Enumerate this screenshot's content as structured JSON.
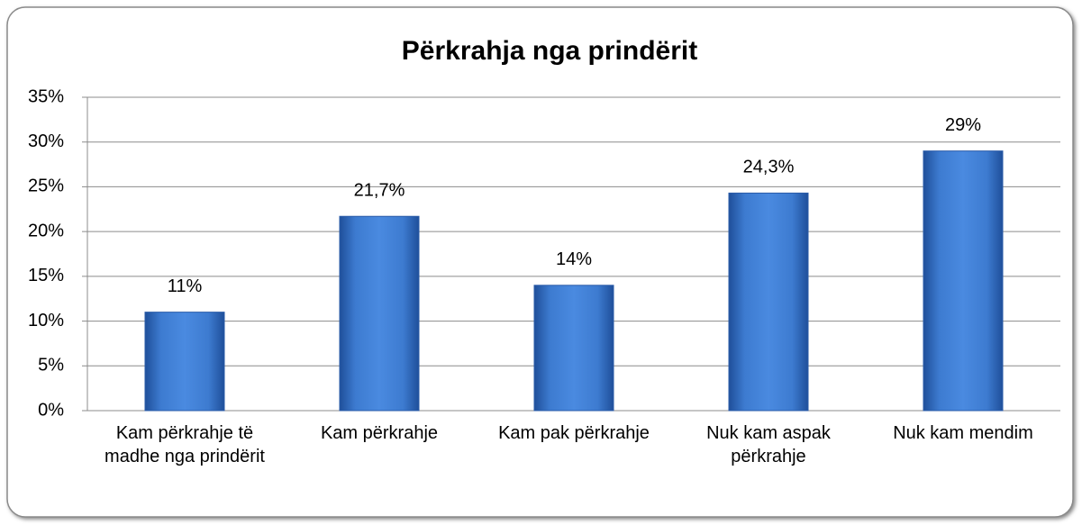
{
  "chart_data": {
    "type": "bar",
    "title": "Përkrahja nga prindërit",
    "categories": [
      "Kam përkrahje të madhe nga prindërit",
      "Kam përkrahje",
      "Kam pak përkrahje",
      "Nuk kam aspak përkrahje",
      "Nuk kam mendim"
    ],
    "values": [
      11,
      21.7,
      14,
      24.3,
      29
    ],
    "value_labels": [
      "11%",
      "21,7%",
      "14%",
      "24,3%",
      "29%"
    ],
    "color": "#3d7bd0",
    "ylim": [
      0,
      35
    ],
    "yticks": [
      {
        "value": 0,
        "label": "0%"
      },
      {
        "value": 5,
        "label": "5%"
      },
      {
        "value": 10,
        "label": "10%"
      },
      {
        "value": 15,
        "label": "15%"
      },
      {
        "value": 20,
        "label": "20%"
      },
      {
        "value": 25,
        "label": "25%"
      },
      {
        "value": 30,
        "label": "30%"
      },
      {
        "value": 35,
        "label": "35%"
      }
    ],
    "grid": true
  }
}
